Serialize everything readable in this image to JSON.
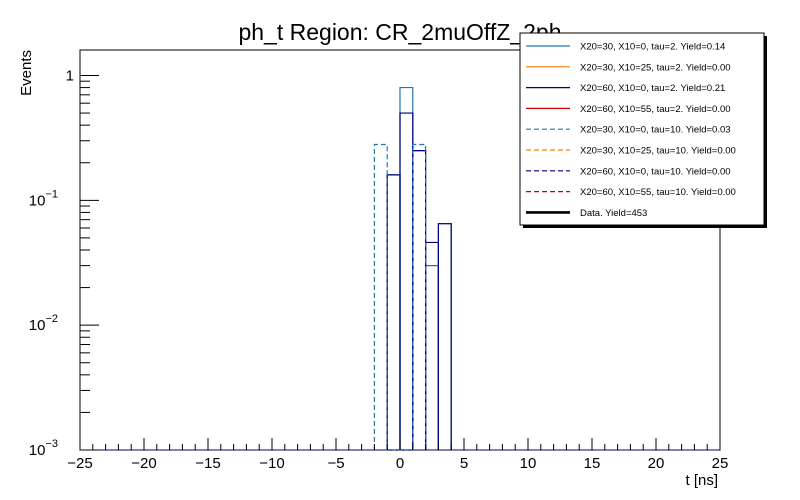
{
  "chart_data": {
    "type": "histogram",
    "title": "ph_t Region: CR_2muOffZ_2ph",
    "xlabel": "t [ns]",
    "ylabel": "Events",
    "xlim": [
      -25,
      25
    ],
    "ylim": [
      0.001,
      1.6
    ],
    "yscale": "log",
    "grid": false,
    "legend_position": "top-right",
    "x_tick_labels": [
      "−25",
      "−20",
      "−15",
      "−10",
      "−5",
      "0",
      "5",
      "10",
      "15",
      "20",
      "25"
    ],
    "x_tick_values": [
      -25,
      -20,
      -15,
      -10,
      -5,
      0,
      5,
      10,
      15,
      20,
      25
    ],
    "y_tick_labels": [
      {
        "value": 0.001,
        "base": "10",
        "exp": "−3"
      },
      {
        "value": 0.01,
        "base": "10",
        "exp": "−2"
      },
      {
        "value": 0.1,
        "base": "10",
        "exp": "−1"
      },
      {
        "value": 1,
        "base": "1",
        "exp": ""
      }
    ],
    "series": [
      {
        "name": "X20=30, X10=0, tau=2. Yield=0.14",
        "color": "#1f77b4",
        "dash": false,
        "bins": [
          [
            -1,
            0,
            0.16
          ],
          [
            0,
            1,
            0.8
          ],
          [
            1,
            2,
            0.25
          ],
          [
            2,
            3,
            0.03
          ],
          [
            3,
            4,
            0.065
          ]
        ]
      },
      {
        "name": "X20=30, X10=25, tau=2. Yield=0.00",
        "color": "#ff7f0e",
        "dash": false,
        "bins": []
      },
      {
        "name": "X20=60, X10=0, tau=2. Yield=0.21",
        "color": "#000080",
        "dash": false,
        "bins": [
          [
            -1,
            0,
            0.16
          ],
          [
            0,
            1,
            0.5
          ],
          [
            1,
            2,
            0.25
          ],
          [
            2,
            3,
            0.046
          ],
          [
            3,
            4,
            0.065
          ]
        ]
      },
      {
        "name": "X20=60, X10=55, tau=2. Yield=0.00",
        "color": "#cc0000",
        "dash": false,
        "bins": []
      },
      {
        "name": "X20=30, X10=0, tau=10. Yield=0.03",
        "color": "#1f77b4",
        "dash": true,
        "bins": [
          [
            -2,
            -1,
            0.28
          ],
          [
            -1,
            0,
            0.001
          ],
          [
            0,
            1,
            0.001
          ],
          [
            1,
            2,
            0.28
          ]
        ]
      },
      {
        "name": "X20=30, X10=25, tau=10. Yield=0.00",
        "color": "#ff7f0e",
        "dash": true,
        "bins": []
      },
      {
        "name": "X20=60, X10=0, tau=10. Yield=0.00",
        "color": "#000080",
        "dash": true,
        "bins": []
      },
      {
        "name": "X20=60, X10=55, tau=10. Yield=0.00",
        "color": "#cc0000",
        "dash": true,
        "bins": []
      },
      {
        "name": "Data. Yield=453",
        "color": "#000000",
        "dash": false,
        "bold": true,
        "bins": []
      }
    ]
  }
}
